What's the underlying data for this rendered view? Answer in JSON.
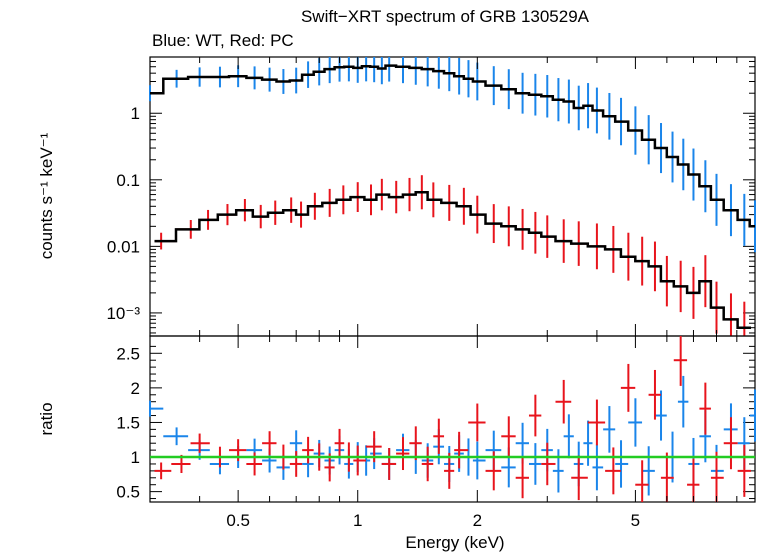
{
  "chart_data": {
    "type": "scatter",
    "title": "Swift−XRT spectrum of GRB 130529A",
    "subtitle": "Blue: WT, Red: PC",
    "xlabel": "Energy (keV)",
    "x_scale": "log",
    "xlim": [
      0.3,
      10
    ],
    "x_tick_labels": [
      "0.5",
      "1",
      "2",
      "5"
    ],
    "panels": [
      {
        "name": "spectrum",
        "ylabel": "counts s⁻¹ keV⁻¹",
        "y_scale": "log",
        "ylim": [
          0.00045,
          7
        ],
        "y_tick_labels": [
          "1",
          "0.1",
          "0.01",
          "10⁻³"
        ],
        "y_tick_values": [
          1,
          0.1,
          0.01,
          0.001
        ],
        "series": [
          {
            "color": "#1a85ea",
            "points": [
              [
                0.3,
                2.0
              ],
              [
                0.35,
                3.3
              ],
              [
                0.4,
                3.5
              ],
              [
                0.45,
                3.5
              ],
              [
                0.5,
                3.6
              ],
              [
                0.55,
                3.4
              ],
              [
                0.6,
                3.2
              ],
              [
                0.65,
                3.0
              ],
              [
                0.7,
                3.1
              ],
              [
                0.75,
                3.8
              ],
              [
                0.8,
                4.2
              ],
              [
                0.85,
                4.6
              ],
              [
                0.9,
                4.9
              ],
              [
                0.95,
                5.0
              ],
              [
                1.0,
                4.8
              ],
              [
                1.05,
                5.1
              ],
              [
                1.1,
                5.0
              ],
              [
                1.15,
                4.7
              ],
              [
                1.2,
                5.2
              ],
              [
                1.3,
                5.0
              ],
              [
                1.4,
                4.8
              ],
              [
                1.5,
                4.6
              ],
              [
                1.6,
                4.3
              ],
              [
                1.7,
                4.0
              ],
              [
                1.8,
                3.6
              ],
              [
                1.9,
                3.3
              ],
              [
                2.0,
                3.0
              ],
              [
                2.2,
                2.6
              ],
              [
                2.4,
                2.3
              ],
              [
                2.6,
                2.0
              ],
              [
                2.8,
                1.9
              ],
              [
                3.0,
                1.8
              ],
              [
                3.2,
                1.6
              ],
              [
                3.4,
                1.5
              ],
              [
                3.6,
                1.2
              ],
              [
                3.8,
                1.3
              ],
              [
                4.0,
                1.1
              ],
              [
                4.3,
                0.9
              ],
              [
                4.6,
                0.75
              ],
              [
                5.0,
                0.55
              ],
              [
                5.4,
                0.4
              ],
              [
                5.8,
                0.3
              ],
              [
                6.2,
                0.22
              ],
              [
                6.6,
                0.17
              ],
              [
                7.0,
                0.12
              ],
              [
                7.5,
                0.08
              ],
              [
                8.0,
                0.05
              ],
              [
                8.7,
                0.035
              ],
              [
                9.4,
                0.025
              ],
              [
                10.0,
                0.02
              ]
            ]
          },
          {
            "color": "#e8141c",
            "points": [
              [
                0.32,
                0.012
              ],
              [
                0.38,
                0.018
              ],
              [
                0.42,
                0.025
              ],
              [
                0.47,
                0.03
              ],
              [
                0.52,
                0.035
              ],
              [
                0.57,
                0.028
              ],
              [
                0.62,
                0.032
              ],
              [
                0.68,
                0.035
              ],
              [
                0.72,
                0.03
              ],
              [
                0.78,
                0.04
              ],
              [
                0.85,
                0.045
              ],
              [
                0.92,
                0.05
              ],
              [
                1.0,
                0.055
              ],
              [
                1.08,
                0.05
              ],
              [
                1.15,
                0.06
              ],
              [
                1.25,
                0.055
              ],
              [
                1.35,
                0.06
              ],
              [
                1.45,
                0.065
              ],
              [
                1.55,
                0.05
              ],
              [
                1.7,
                0.045
              ],
              [
                1.85,
                0.04
              ],
              [
                2.0,
                0.03
              ],
              [
                2.2,
                0.022
              ],
              [
                2.4,
                0.02
              ],
              [
                2.6,
                0.018
              ],
              [
                2.8,
                0.016
              ],
              [
                3.0,
                0.014
              ],
              [
                3.3,
                0.012
              ],
              [
                3.6,
                0.011
              ],
              [
                4.0,
                0.01
              ],
              [
                4.4,
                0.009
              ],
              [
                4.8,
                0.007
              ],
              [
                5.2,
                0.006
              ],
              [
                5.6,
                0.005
              ],
              [
                6.0,
                0.003
              ],
              [
                6.5,
                0.0025
              ],
              [
                7.0,
                0.002
              ],
              [
                7.5,
                0.003
              ],
              [
                8.0,
                0.0012
              ],
              [
                8.7,
                0.0008
              ],
              [
                9.4,
                0.0006
              ]
            ]
          }
        ]
      },
      {
        "name": "ratio",
        "ylabel": "ratio",
        "y_scale": "linear",
        "ylim": [
          0.35,
          2.75
        ],
        "y_tick_labels": [
          "0.5",
          "1",
          "1.5",
          "2",
          "2.5"
        ],
        "y_tick_values": [
          0.5,
          1,
          1.5,
          2,
          2.5
        ],
        "reference_line": {
          "y": 1,
          "color": "#22cc22"
        },
        "series": [
          {
            "color": "#1a85ea",
            "points": [
              [
                0.3,
                1.7
              ],
              [
                0.35,
                1.3
              ],
              [
                0.4,
                1.1
              ],
              [
                0.45,
                0.9
              ],
              [
                0.5,
                1.0
              ],
              [
                0.55,
                1.1
              ],
              [
                0.6,
                0.95
              ],
              [
                0.65,
                0.85
              ],
              [
                0.7,
                1.2
              ],
              [
                0.75,
                0.9
              ],
              [
                0.8,
                1.05
              ],
              [
                0.85,
                0.95
              ],
              [
                0.9,
                1.1
              ],
              [
                0.95,
                0.9
              ],
              [
                1.0,
                1.0
              ],
              [
                1.05,
                0.95
              ],
              [
                1.1,
                1.05
              ],
              [
                1.2,
                0.9
              ],
              [
                1.3,
                1.1
              ],
              [
                1.4,
                1.0
              ],
              [
                1.5,
                0.95
              ],
              [
                1.6,
                1.15
              ],
              [
                1.7,
                0.9
              ],
              [
                1.8,
                1.05
              ],
              [
                1.9,
                1.0
              ],
              [
                2.0,
                0.95
              ],
              [
                2.2,
                1.1
              ],
              [
                2.4,
                0.85
              ],
              [
                2.6,
                1.2
              ],
              [
                2.8,
                0.9
              ],
              [
                3.0,
                1.1
              ],
              [
                3.2,
                0.8
              ],
              [
                3.4,
                1.3
              ],
              [
                3.6,
                0.9
              ],
              [
                3.8,
                1.2
              ],
              [
                4.0,
                0.85
              ],
              [
                4.3,
                1.4
              ],
              [
                4.6,
                0.9
              ],
              [
                5.0,
                1.5
              ],
              [
                5.4,
                0.8
              ],
              [
                5.8,
                1.6
              ],
              [
                6.2,
                1.0
              ],
              [
                6.6,
                1.8
              ],
              [
                7.0,
                0.9
              ],
              [
                7.5,
                1.3
              ],
              [
                8.0,
                0.8
              ],
              [
                8.7,
                1.4
              ],
              [
                9.4,
                1.2
              ],
              [
                10.0,
                1.6
              ]
            ]
          },
          {
            "color": "#e8141c",
            "points": [
              [
                0.32,
                0.8
              ],
              [
                0.36,
                0.9
              ],
              [
                0.4,
                1.2
              ],
              [
                0.45,
                1.0
              ],
              [
                0.5,
                1.1
              ],
              [
                0.55,
                0.9
              ],
              [
                0.6,
                1.2
              ],
              [
                0.65,
                1.0
              ],
              [
                0.7,
                0.9
              ],
              [
                0.75,
                1.1
              ],
              [
                0.8,
                1.0
              ],
              [
                0.85,
                0.85
              ],
              [
                0.9,
                1.2
              ],
              [
                0.95,
                1.0
              ],
              [
                1.0,
                0.95
              ],
              [
                1.1,
                1.15
              ],
              [
                1.2,
                0.9
              ],
              [
                1.3,
                1.05
              ],
              [
                1.4,
                1.2
              ],
              [
                1.5,
                0.9
              ],
              [
                1.6,
                1.3
              ],
              [
                1.7,
                0.8
              ],
              [
                1.8,
                1.1
              ],
              [
                2.0,
                1.5
              ],
              [
                2.2,
                0.8
              ],
              [
                2.4,
                1.3
              ],
              [
                2.6,
                0.7
              ],
              [
                2.8,
                1.6
              ],
              [
                3.0,
                0.9
              ],
              [
                3.3,
                1.8
              ],
              [
                3.6,
                0.7
              ],
              [
                4.0,
                1.5
              ],
              [
                4.4,
                0.8
              ],
              [
                4.8,
                2.0
              ],
              [
                5.2,
                0.6
              ],
              [
                5.6,
                1.9
              ],
              [
                6.0,
                0.7
              ],
              [
                6.5,
                2.4
              ],
              [
                7.0,
                0.6
              ],
              [
                7.5,
                1.7
              ],
              [
                8.0,
                0.7
              ],
              [
                8.7,
                1.2
              ],
              [
                9.4,
                0.8
              ]
            ]
          }
        ]
      }
    ]
  }
}
